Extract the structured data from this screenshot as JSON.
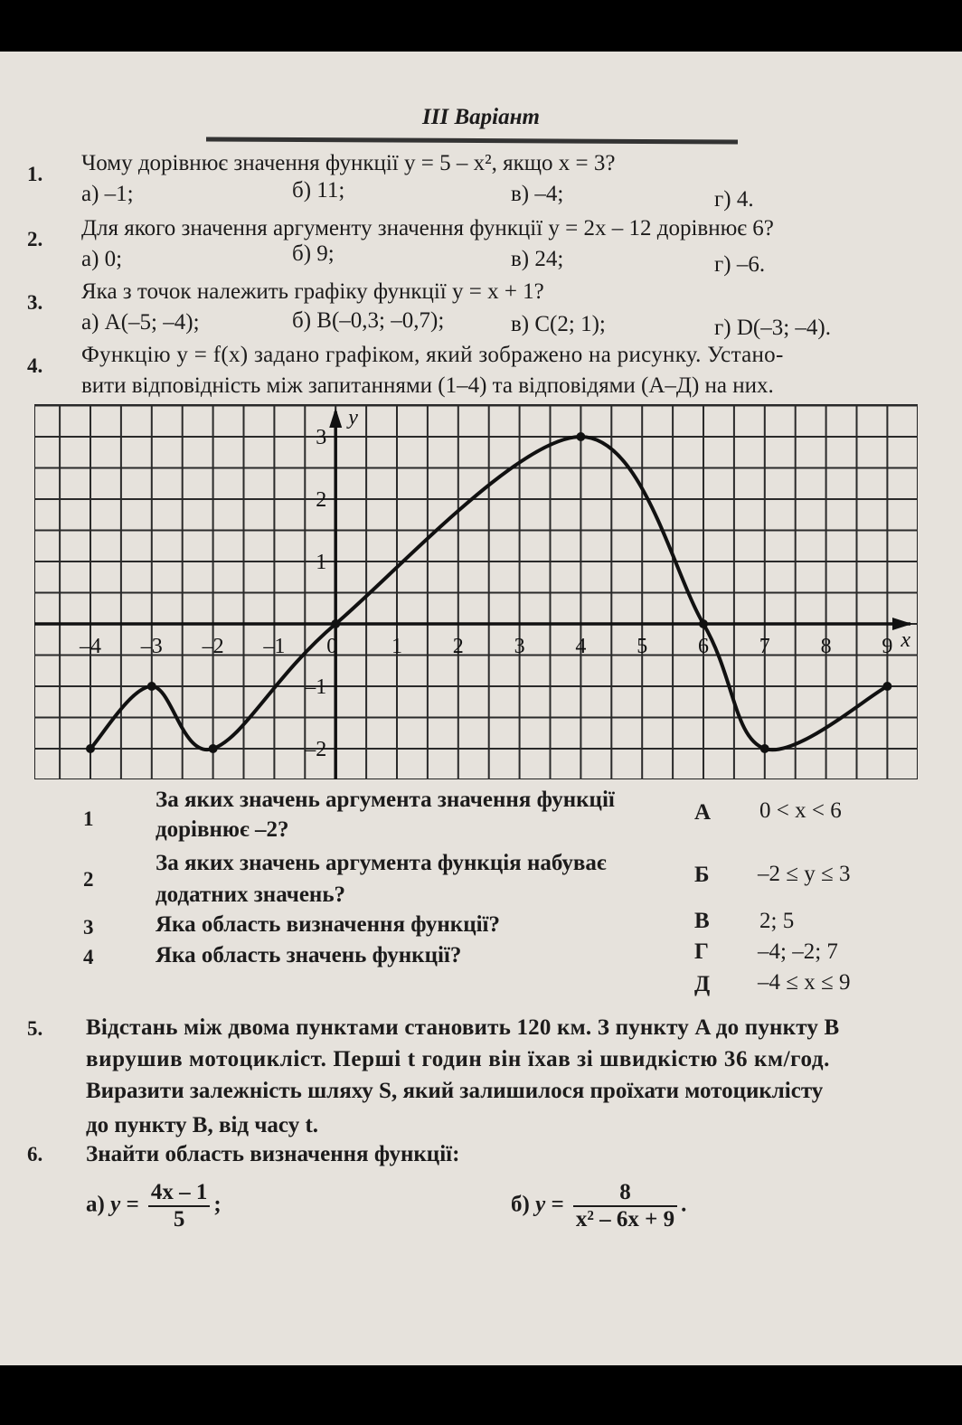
{
  "title": "III Варіант",
  "questions": [
    {
      "num": "1.",
      "text": "Чому дорівнює значення функції y = 5 – x², якщо x = 3?",
      "options": [
        "а) –1;",
        "б) 11;",
        "в) –4;",
        "г) 4."
      ]
    },
    {
      "num": "2.",
      "text": "Для якого значення аргументу значення функції y = 2x – 12 дорівнює 6?",
      "options": [
        "а) 0;",
        "б) 9;",
        "в) 24;",
        "г) –6."
      ]
    },
    {
      "num": "3.",
      "text": "Яка з точок належить графіку функції y = x + 1?",
      "options": [
        "а) A(–5; –4);",
        "б) B(–0,3; –0,7);",
        "в) C(2; 1);",
        "г) D(–3; –4)."
      ]
    },
    {
      "num": "4.",
      "line1": "Функцію y = f(x) задано графіком, який зображено на рисунку. Устано-",
      "line2": "вити відповідність між запитаннями (1–4) та відповідями (А–Д) на них."
    }
  ],
  "graph": {
    "x_label": "x",
    "y_label": "y",
    "x_ticks": [
      "-4",
      "-3",
      "-2",
      "-1",
      "0",
      "1",
      "2",
      "3",
      "4",
      "5",
      "6",
      "7",
      "8",
      "9"
    ],
    "y_ticks": [
      "3",
      "2",
      "1",
      "-1",
      "-2"
    ],
    "xlim": [
      -5,
      9.5
    ],
    "ylim": [
      -2.5,
      3.5
    ],
    "grid_step": 0.5,
    "points": [
      [
        -4,
        -2
      ],
      [
        -3,
        -1
      ],
      [
        -2,
        -2
      ],
      [
        0,
        0
      ],
      [
        4,
        3
      ],
      [
        6,
        0
      ],
      [
        7,
        -2
      ],
      [
        9,
        -1
      ]
    ]
  },
  "matching": {
    "questions": [
      {
        "num": "1",
        "line1": "За яких значень аргумента значення функції",
        "line2": "дорівнює –2?"
      },
      {
        "num": "2",
        "line1": "За яких значень аргумента функція набуває",
        "line2": "додатних значень?"
      },
      {
        "num": "3",
        "line1": "Яка область визначення функції?"
      },
      {
        "num": "4",
        "line1": "Яка область значень функції?"
      }
    ],
    "answers": [
      {
        "letter": "А",
        "text": "0 < x < 6"
      },
      {
        "letter": "Б",
        "text": "–2 ≤ y ≤ 3"
      },
      {
        "letter": "В",
        "text": "2; 5"
      },
      {
        "letter": "Г",
        "text": "–4; –2; 7"
      },
      {
        "letter": "Д",
        "text": "–4 ≤ x ≤ 9"
      }
    ]
  },
  "q5": {
    "num": "5.",
    "lines": [
      "Відстань між двома пунктами становить 120 км. З пункту A до пункту B",
      "вирушив мотоцикліст. Перші t годин він їхав зі швидкістю 36 км/год.",
      "Виразити залежність шляху S, який залишилося проїхати мотоциклісту",
      "до пункту B, від часу t."
    ]
  },
  "q6": {
    "num": "6.",
    "text": "Знайти область визначення функції:",
    "a": {
      "label": "а)",
      "lhs": "y =",
      "numerator": "4x – 1",
      "denominator": "5",
      "end": ";"
    },
    "b": {
      "label": "б)",
      "lhs": "y =",
      "numerator": "8",
      "denominator": "x² – 6x + 9",
      "end": "."
    }
  }
}
